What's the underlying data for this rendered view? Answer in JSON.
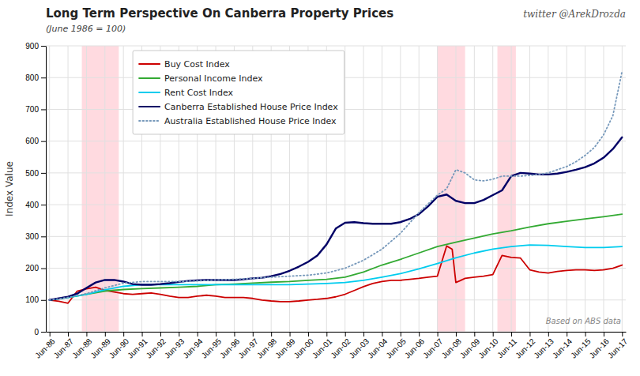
{
  "chart_data": {
    "type": "line",
    "title": "Long Term Perspective On Canberra Property Prices",
    "subtitle": "(June 1986 = 100)",
    "annotations": [
      "twitter @ArekDrozda",
      "Based on ABS data"
    ],
    "ylabel": "Index Value",
    "ylim": [
      0,
      900
    ],
    "yticks": [
      0,
      100,
      200,
      300,
      400,
      500,
      600,
      700,
      800,
      900
    ],
    "xlim": [
      1986.3,
      2017.7
    ],
    "xticks": [
      {
        "value": 1986.5,
        "label": "Jun-86"
      },
      {
        "value": 1987.5,
        "label": "Jun-87"
      },
      {
        "value": 1988.5,
        "label": "Jun-88"
      },
      {
        "value": 1989.5,
        "label": "Jun-89"
      },
      {
        "value": 1990.5,
        "label": "Jun-90"
      },
      {
        "value": 1991.5,
        "label": "Jun-91"
      },
      {
        "value": 1992.5,
        "label": "Jun-92"
      },
      {
        "value": 1993.5,
        "label": "Jun-93"
      },
      {
        "value": 1994.5,
        "label": "Jun-94"
      },
      {
        "value": 1995.5,
        "label": "Jun-95"
      },
      {
        "value": 1996.5,
        "label": "Jun-96"
      },
      {
        "value": 1997.5,
        "label": "Jun-97"
      },
      {
        "value": 1998.5,
        "label": "Jun-98"
      },
      {
        "value": 1999.5,
        "label": "Jun-99"
      },
      {
        "value": 2000.5,
        "label": "Jun-00"
      },
      {
        "value": 2001.5,
        "label": "Jun-01"
      },
      {
        "value": 2002.5,
        "label": "Jun-02"
      },
      {
        "value": 2003.5,
        "label": "Jun-03"
      },
      {
        "value": 2004.5,
        "label": "Jun-04"
      },
      {
        "value": 2005.5,
        "label": "Jun-05"
      },
      {
        "value": 2006.5,
        "label": "Jun-06"
      },
      {
        "value": 2007.5,
        "label": "Jun-07"
      },
      {
        "value": 2008.5,
        "label": "Jun-08"
      },
      {
        "value": 2009.5,
        "label": "Jun-09"
      },
      {
        "value": 2010.5,
        "label": "Jun-10"
      },
      {
        "value": 2011.5,
        "label": "Jun-11"
      },
      {
        "value": 2012.5,
        "label": "Jun-12"
      },
      {
        "value": 2013.5,
        "label": "Jun-13"
      },
      {
        "value": 2014.5,
        "label": "Jun-14"
      },
      {
        "value": 2015.5,
        "label": "Jun-15"
      },
      {
        "value": 2016.5,
        "label": "Jun-16"
      },
      {
        "value": 2017.5,
        "label": "Jun-17"
      }
    ],
    "grid": true,
    "legend": "upper left",
    "shaded_regions": [
      {
        "start": 1988.25,
        "end": 1990.25,
        "color": "#ffb6c1"
      },
      {
        "start": 2007.5,
        "end": 2009.0,
        "color": "#ffb6c1"
      },
      {
        "start": 2010.75,
        "end": 2011.75,
        "color": "#ffb6c1"
      }
    ],
    "series": [
      {
        "name": "Buy Cost Index",
        "color": "#cc0000",
        "x": [
          1986.5,
          1987.0,
          1987.5,
          1988.0,
          1988.5,
          1989.0,
          1989.5,
          1990.0,
          1990.5,
          1991.0,
          1991.5,
          1992.0,
          1992.5,
          1993.0,
          1993.5,
          1994.0,
          1994.5,
          1995.0,
          1995.5,
          1996.0,
          1996.5,
          1997.0,
          1997.5,
          1998.0,
          1998.5,
          1999.0,
          1999.5,
          2000.0,
          2000.5,
          2001.0,
          2001.5,
          2002.0,
          2002.5,
          2003.0,
          2003.5,
          2004.0,
          2004.5,
          2005.0,
          2005.5,
          2006.0,
          2006.5,
          2007.0,
          2007.5,
          2008.0,
          2008.3,
          2008.5,
          2008.7,
          2009.0,
          2009.5,
          2010.0,
          2010.5,
          2011.0,
          2011.5,
          2012.0,
          2012.5,
          2013.0,
          2013.5,
          2014.0,
          2014.5,
          2015.0,
          2015.5,
          2016.0,
          2016.5,
          2017.0,
          2017.5
        ],
        "values": [
          100,
          96,
          90,
          128,
          135,
          140,
          130,
          125,
          120,
          118,
          120,
          122,
          118,
          112,
          108,
          108,
          112,
          115,
          112,
          108,
          108,
          108,
          105,
          100,
          97,
          95,
          95,
          97,
          100,
          102,
          105,
          110,
          118,
          130,
          142,
          152,
          158,
          162,
          162,
          165,
          168,
          172,
          175,
          270,
          260,
          155,
          160,
          168,
          172,
          175,
          180,
          240,
          234,
          232,
          195,
          188,
          185,
          190,
          193,
          195,
          195,
          193,
          195,
          200,
          210
        ]
      },
      {
        "name": "Personal Income Index",
        "color": "#33aa33",
        "x": [
          1986.5,
          1987.5,
          1988.5,
          1989.5,
          1990.5,
          1991.5,
          1992.5,
          1993.5,
          1994.5,
          1995.5,
          1996.5,
          1997.5,
          1998.5,
          1999.5,
          2000.5,
          2001.5,
          2002.5,
          2003.5,
          2004.5,
          2005.5,
          2006.5,
          2007.5,
          2008.5,
          2009.5,
          2010.5,
          2011.5,
          2012.5,
          2013.5,
          2014.5,
          2015.5,
          2016.5,
          2017.5
        ],
        "values": [
          100,
          108,
          118,
          128,
          133,
          136,
          138,
          140,
          143,
          148,
          150,
          153,
          156,
          158,
          162,
          165,
          172,
          188,
          210,
          228,
          248,
          268,
          282,
          295,
          308,
          318,
          330,
          340,
          348,
          355,
          362,
          370
        ]
      },
      {
        "name": "Rent Cost Index",
        "color": "#00ccee",
        "x": [
          1986.5,
          1987.5,
          1988.5,
          1989.5,
          1990.5,
          1991.5,
          1992.5,
          1993.5,
          1994.5,
          1995.5,
          1996.5,
          1997.5,
          1998.5,
          1999.5,
          2000.5,
          2001.5,
          2002.5,
          2003.5,
          2004.5,
          2005.5,
          2006.5,
          2007.5,
          2008.5,
          2009.5,
          2010.5,
          2011.5,
          2012.5,
          2013.5,
          2014.5,
          2015.5,
          2016.5,
          2017.5
        ],
        "values": [
          100,
          108,
          118,
          132,
          143,
          148,
          148,
          148,
          148,
          148,
          148,
          148,
          148,
          148,
          150,
          152,
          155,
          162,
          172,
          183,
          198,
          215,
          233,
          248,
          260,
          268,
          273,
          272,
          268,
          265,
          265,
          268
        ]
      },
      {
        "name": "Canberra Established House Price Index",
        "color": "#000066",
        "x": [
          1986.5,
          1987.0,
          1987.5,
          1988.0,
          1988.5,
          1989.0,
          1989.5,
          1990.0,
          1990.5,
          1991.0,
          1991.5,
          1992.0,
          1992.5,
          1993.0,
          1993.5,
          1994.0,
          1994.5,
          1995.0,
          1995.5,
          1996.0,
          1996.5,
          1997.0,
          1997.5,
          1998.0,
          1998.5,
          1999.0,
          1999.5,
          2000.0,
          2000.5,
          2001.0,
          2001.5,
          2002.0,
          2002.5,
          2003.0,
          2003.5,
          2004.0,
          2004.5,
          2005.0,
          2005.5,
          2006.0,
          2006.5,
          2007.0,
          2007.5,
          2008.0,
          2008.5,
          2009.0,
          2009.5,
          2010.0,
          2010.5,
          2011.0,
          2011.5,
          2012.0,
          2012.5,
          2013.0,
          2013.5,
          2014.0,
          2014.5,
          2015.0,
          2015.5,
          2016.0,
          2016.5,
          2017.0,
          2017.5
        ],
        "values": [
          100,
          105,
          110,
          120,
          138,
          155,
          163,
          163,
          158,
          150,
          148,
          148,
          150,
          153,
          157,
          160,
          162,
          163,
          163,
          163,
          163,
          165,
          168,
          170,
          175,
          182,
          192,
          205,
          220,
          240,
          275,
          325,
          343,
          345,
          342,
          340,
          340,
          340,
          345,
          355,
          370,
          395,
          425,
          432,
          412,
          405,
          405,
          415,
          430,
          445,
          490,
          500,
          498,
          495,
          495,
          498,
          503,
          510,
          518,
          530,
          548,
          575,
          612
        ]
      },
      {
        "name": "Australia Established House Price Index",
        "color": "#7799bb",
        "line_style": "dotted",
        "x": [
          1986.5,
          1987.5,
          1988.5,
          1989.5,
          1990.5,
          1991.5,
          1992.5,
          1993.5,
          1994.5,
          1995.5,
          1996.5,
          1997.5,
          1998.5,
          1999.5,
          2000.5,
          2001.5,
          2002.5,
          2003.5,
          2004.5,
          2005.5,
          2006.5,
          2007.5,
          2008.0,
          2008.5,
          2009.0,
          2009.5,
          2010.0,
          2010.5,
          2011.0,
          2011.5,
          2012.0,
          2012.5,
          2013.0,
          2013.5,
          2014.0,
          2014.5,
          2015.0,
          2015.5,
          2016.0,
          2016.5,
          2017.0,
          2017.5
        ],
        "values": [
          100,
          108,
          120,
          138,
          153,
          158,
          158,
          158,
          160,
          163,
          165,
          168,
          172,
          175,
          178,
          185,
          200,
          225,
          260,
          310,
          375,
          430,
          450,
          510,
          500,
          478,
          475,
          480,
          490,
          490,
          490,
          492,
          495,
          500,
          510,
          520,
          535,
          555,
          580,
          620,
          680,
          820
        ]
      }
    ]
  }
}
